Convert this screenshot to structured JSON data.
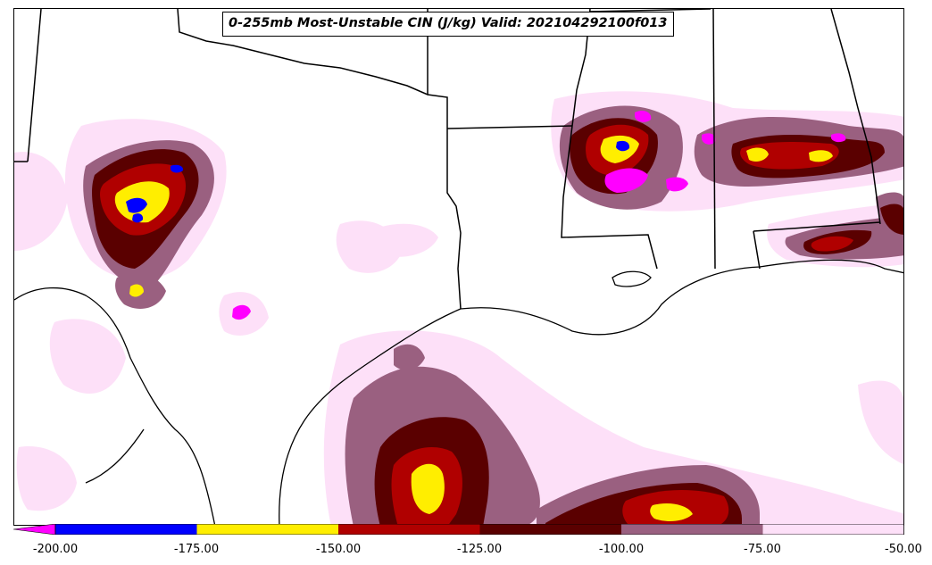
{
  "title": "0-255mb Most-Unstable CIN (J/kg) Valid: 202104292100f013",
  "colors": {
    "c_lt_200": "#ff00ff",
    "c_200_175": "#0000ff",
    "c_175_150": "#ffee00",
    "c_150_125": "#b00000",
    "c_125_100": "#5a0000",
    "c_100_75": "#9a6080",
    "c_75_50": "#fde0f8",
    "boundary": "#000000"
  },
  "colorbar": {
    "ticks": [
      "-200.00",
      "-175.00",
      "-150.00",
      "-125.00",
      "-100.00",
      "-75.00",
      "-50.00"
    ],
    "levels": [
      -200,
      -175,
      -150,
      -125,
      -100,
      -75,
      -50
    ],
    "extend": "min"
  }
}
